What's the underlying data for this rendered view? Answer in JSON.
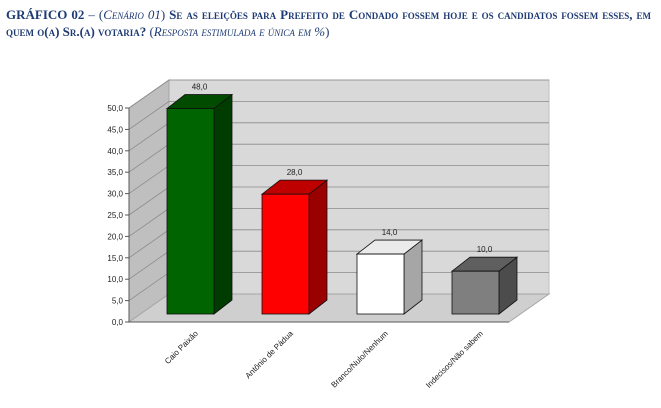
{
  "header": {
    "label": "GRÁFICO 02",
    "dash": "–",
    "scenario_open": "(",
    "scenario": "Cenário 01",
    "scenario_close": ")",
    "question": "Se as eleições para Prefeito de Condado fossem hoje e os candidatos fossem esses, em quem o(a) Sr.(a) votaria?",
    "note_open": "(",
    "note": "Resposta estimulada e única em %",
    "note_close": ")"
  },
  "chart_data": {
    "type": "bar",
    "categories": [
      "Caio Paixão",
      "Antônio de Pádua",
      "Branco/Nulo/Nenhum",
      "Indecisos/Não sabem"
    ],
    "values": [
      48.0,
      28.0,
      14.0,
      10.0
    ],
    "value_labels": [
      "48,0",
      "28,0",
      "14,0",
      "10,0"
    ],
    "bar_colors": [
      "#006400",
      "#ff0000",
      "#ffffff",
      "#7f7f7f"
    ],
    "ylim": [
      0,
      50
    ],
    "yticks": [
      "0,0",
      "5,0",
      "10,0",
      "15,0",
      "20,0",
      "25,0",
      "30,0",
      "35,0",
      "40,0",
      "45,0",
      "50,0"
    ],
    "grid": true,
    "three_d": true,
    "legend": "none"
  }
}
